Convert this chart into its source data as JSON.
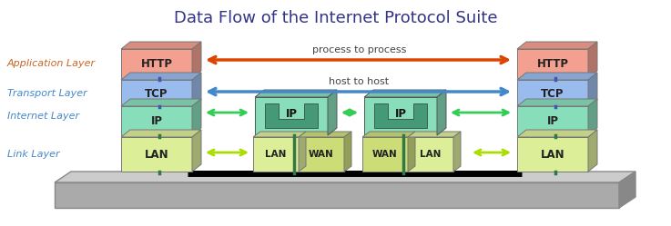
{
  "title": "Data Flow of the Internet Protocol Suite",
  "title_fontsize": 13,
  "title_color": "#333388",
  "layers": [
    "Application Layer",
    "Transport Layer",
    "Internet Layer",
    "Link Layer"
  ],
  "layer_label_colors": [
    "#CC6622",
    "#4488CC",
    "#4488CC",
    "#4488CC"
  ],
  "http_color": "#F4A090",
  "http_top_color": "#E89080",
  "http_right_color": "#D07868",
  "tcp_color": "#99BBEE",
  "tcp_top_color": "#88AADD",
  "tcp_right_color": "#6688BB",
  "ip_color": "#88DDBB",
  "ip_top_color": "#77CCAA",
  "ip_right_color": "#55AA88",
  "ip_router_inner": "#449977",
  "lan_color": "#DDEE99",
  "lan_top_color": "#CCDD88",
  "lan_right_color": "#AAAA55",
  "wan_color": "#CCDD77",
  "wan_right_color": "#AABB55",
  "platform_face": "#AAAAAA",
  "platform_top": "#CCCCCC",
  "platform_right": "#888888",
  "arrow_process_color": "#DD4400",
  "arrow_host_color": "#4488CC",
  "arrow_ip_color": "#33CC55",
  "arrow_lan_color": "#AADD00",
  "connector_blue": "#4455AA",
  "connector_green": "#337744",
  "background_color": "#FFFFFF"
}
